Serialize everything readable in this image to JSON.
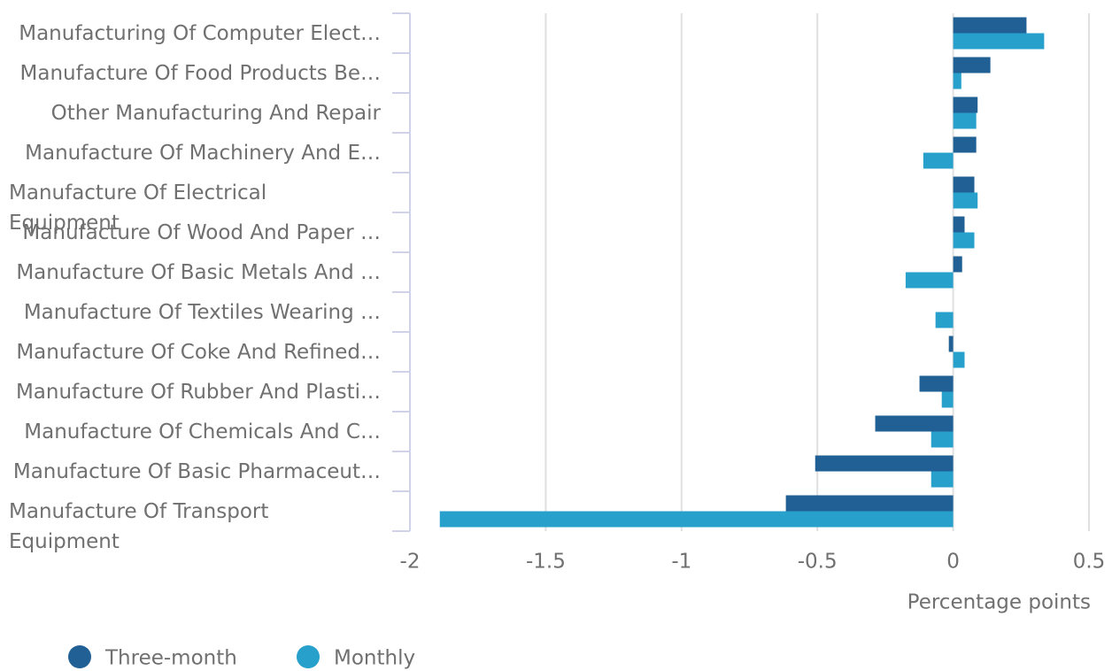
{
  "chart_data": {
    "type": "bar",
    "orientation": "horizontal",
    "categories": [
      "Manufacturing Of Computer Elect…",
      "Manufacture Of Food Products Be…",
      "Other Manufacturing And Repair",
      "Manufacture Of Machinery And E…",
      "Manufacture Of Electrical Equipment",
      "Manufacture Of Wood And Paper …",
      "Manufacture Of Basic Metals And …",
      "Manufacture Of Textiles Wearing …",
      "Manufacture Of Coke And Refined…",
      "Manufacture Of Rubber And Plasti…",
      "Manufacture Of Chemicals And C…",
      "Manufacture Of Basic Pharmaceut…",
      "Manufacture Of Transport Equipment"
    ],
    "series": [
      {
        "name": "Three-month",
        "color": "#206095",
        "values": [
          0.27,
          0.137,
          0.09,
          0.085,
          0.078,
          0.042,
          0.033,
          0,
          -0.016,
          -0.124,
          -0.287,
          -0.508,
          -0.616
        ]
      },
      {
        "name": "Monthly",
        "color": "#27a0cc",
        "values": [
          0.335,
          0.03,
          0.085,
          -0.11,
          0.09,
          0.078,
          -0.175,
          -0.065,
          0.042,
          -0.042,
          -0.081,
          -0.081,
          -1.89
        ]
      }
    ],
    "xlabel": "Percentage points",
    "xlim": [
      -2,
      0.5
    ],
    "xticks": [
      -2,
      -1.5,
      -1,
      -0.5,
      0,
      0.5
    ],
    "grid": true,
    "legend": "bottom-left"
  }
}
